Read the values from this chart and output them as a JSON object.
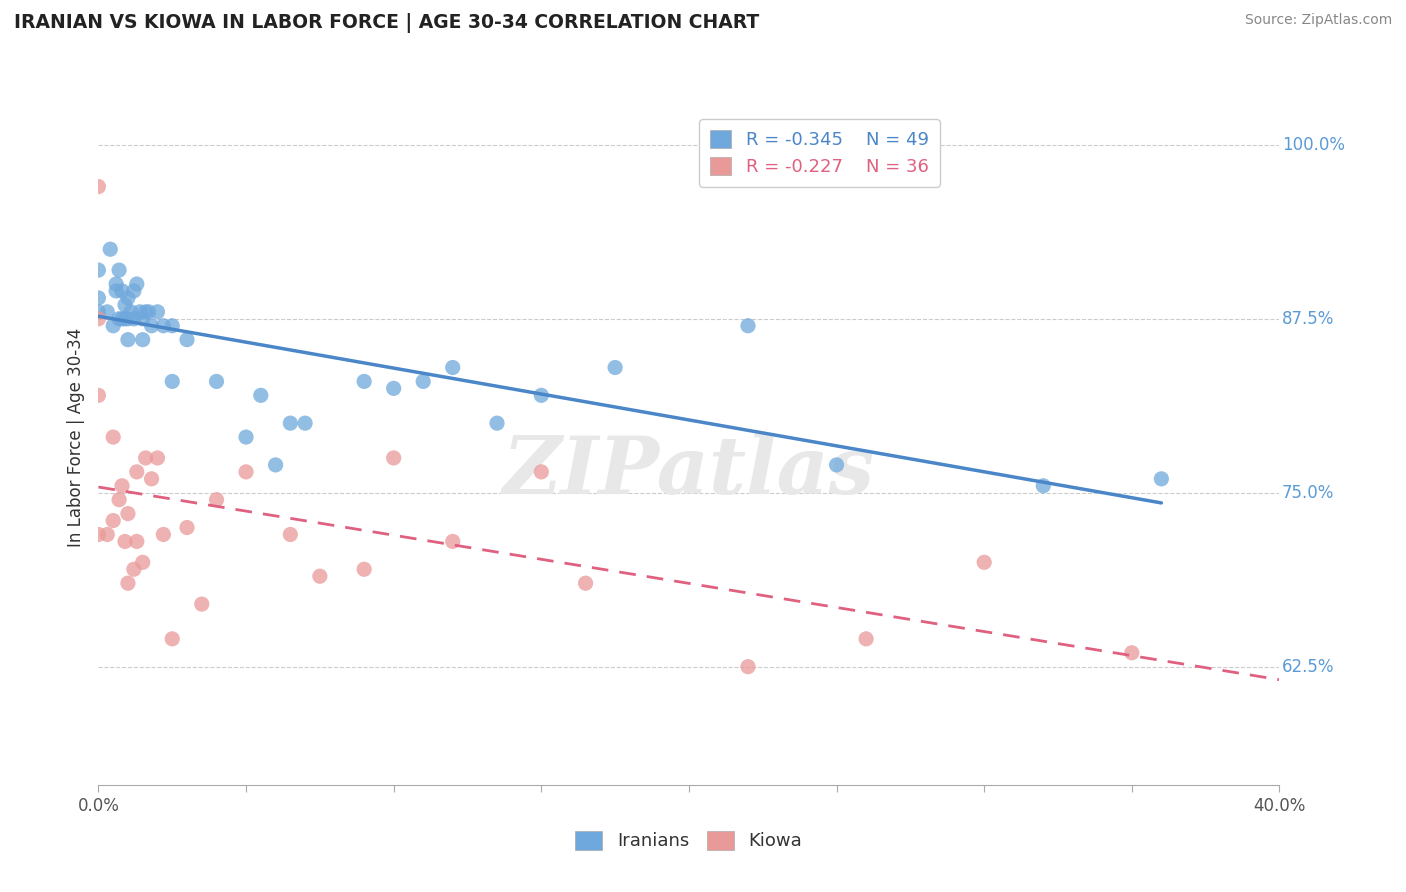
{
  "title": "IRANIAN VS KIOWA IN LABOR FORCE | AGE 30-34 CORRELATION CHART",
  "source": "Source: ZipAtlas.com",
  "ylabel": "In Labor Force | Age 30-34",
  "xlim": [
    0.0,
    0.4
  ],
  "ylim": [
    0.54,
    1.04
  ],
  "yticks": [
    0.625,
    0.75,
    0.875,
    1.0
  ],
  "yticklabels": [
    "62.5%",
    "75.0%",
    "87.5%",
    "100.0%"
  ],
  "xticks": [
    0.0,
    0.05,
    0.1,
    0.15,
    0.2,
    0.25,
    0.3,
    0.35,
    0.4
  ],
  "xticklabels": [
    "0.0%",
    "",
    "",
    "",
    "",
    "",
    "",
    "",
    "40.0%"
  ],
  "watermark": "ZIPatlas",
  "legend_r1": "R = -0.345",
  "legend_n1": "N = 49",
  "legend_r2": "R = -0.227",
  "legend_n2": "N = 36",
  "iranian_color": "#6fa8dc",
  "kiowa_color": "#ea9999",
  "trendline_iranian_color": "#4a86c8",
  "trendline_kiowa_color": "#e06080",
  "tick_label_color": "#5b9bd5",
  "iranian_x": [
    0.0,
    0.0,
    0.0,
    0.003,
    0.004,
    0.005,
    0.006,
    0.006,
    0.007,
    0.007,
    0.008,
    0.008,
    0.009,
    0.009,
    0.01,
    0.01,
    0.01,
    0.011,
    0.012,
    0.012,
    0.013,
    0.014,
    0.015,
    0.015,
    0.016,
    0.017,
    0.018,
    0.02,
    0.022,
    0.025,
    0.025,
    0.03,
    0.04,
    0.05,
    0.055,
    0.06,
    0.065,
    0.07,
    0.09,
    0.1,
    0.11,
    0.12,
    0.135,
    0.15,
    0.175,
    0.22,
    0.25,
    0.32,
    0.36
  ],
  "iranian_y": [
    0.88,
    0.89,
    0.91,
    0.88,
    0.925,
    0.87,
    0.895,
    0.9,
    0.875,
    0.91,
    0.875,
    0.895,
    0.875,
    0.885,
    0.86,
    0.875,
    0.89,
    0.88,
    0.875,
    0.895,
    0.9,
    0.88,
    0.875,
    0.86,
    0.88,
    0.88,
    0.87,
    0.88,
    0.87,
    0.83,
    0.87,
    0.86,
    0.83,
    0.79,
    0.82,
    0.77,
    0.8,
    0.8,
    0.83,
    0.825,
    0.83,
    0.84,
    0.8,
    0.82,
    0.84,
    0.87,
    0.77,
    0.755,
    0.76
  ],
  "kiowa_x": [
    0.0,
    0.0,
    0.0,
    0.0,
    0.003,
    0.005,
    0.005,
    0.007,
    0.008,
    0.009,
    0.01,
    0.01,
    0.012,
    0.013,
    0.013,
    0.015,
    0.016,
    0.018,
    0.02,
    0.022,
    0.025,
    0.03,
    0.035,
    0.04,
    0.05,
    0.065,
    0.075,
    0.09,
    0.1,
    0.12,
    0.15,
    0.165,
    0.22,
    0.26,
    0.3,
    0.35
  ],
  "kiowa_y": [
    0.97,
    0.875,
    0.82,
    0.72,
    0.72,
    0.79,
    0.73,
    0.745,
    0.755,
    0.715,
    0.685,
    0.735,
    0.695,
    0.765,
    0.715,
    0.7,
    0.775,
    0.76,
    0.775,
    0.72,
    0.645,
    0.725,
    0.67,
    0.745,
    0.765,
    0.72,
    0.69,
    0.695,
    0.775,
    0.715,
    0.765,
    0.685,
    0.625,
    0.645,
    0.7,
    0.635
  ],
  "background_color": "#ffffff",
  "grid_color": "#cccccc"
}
